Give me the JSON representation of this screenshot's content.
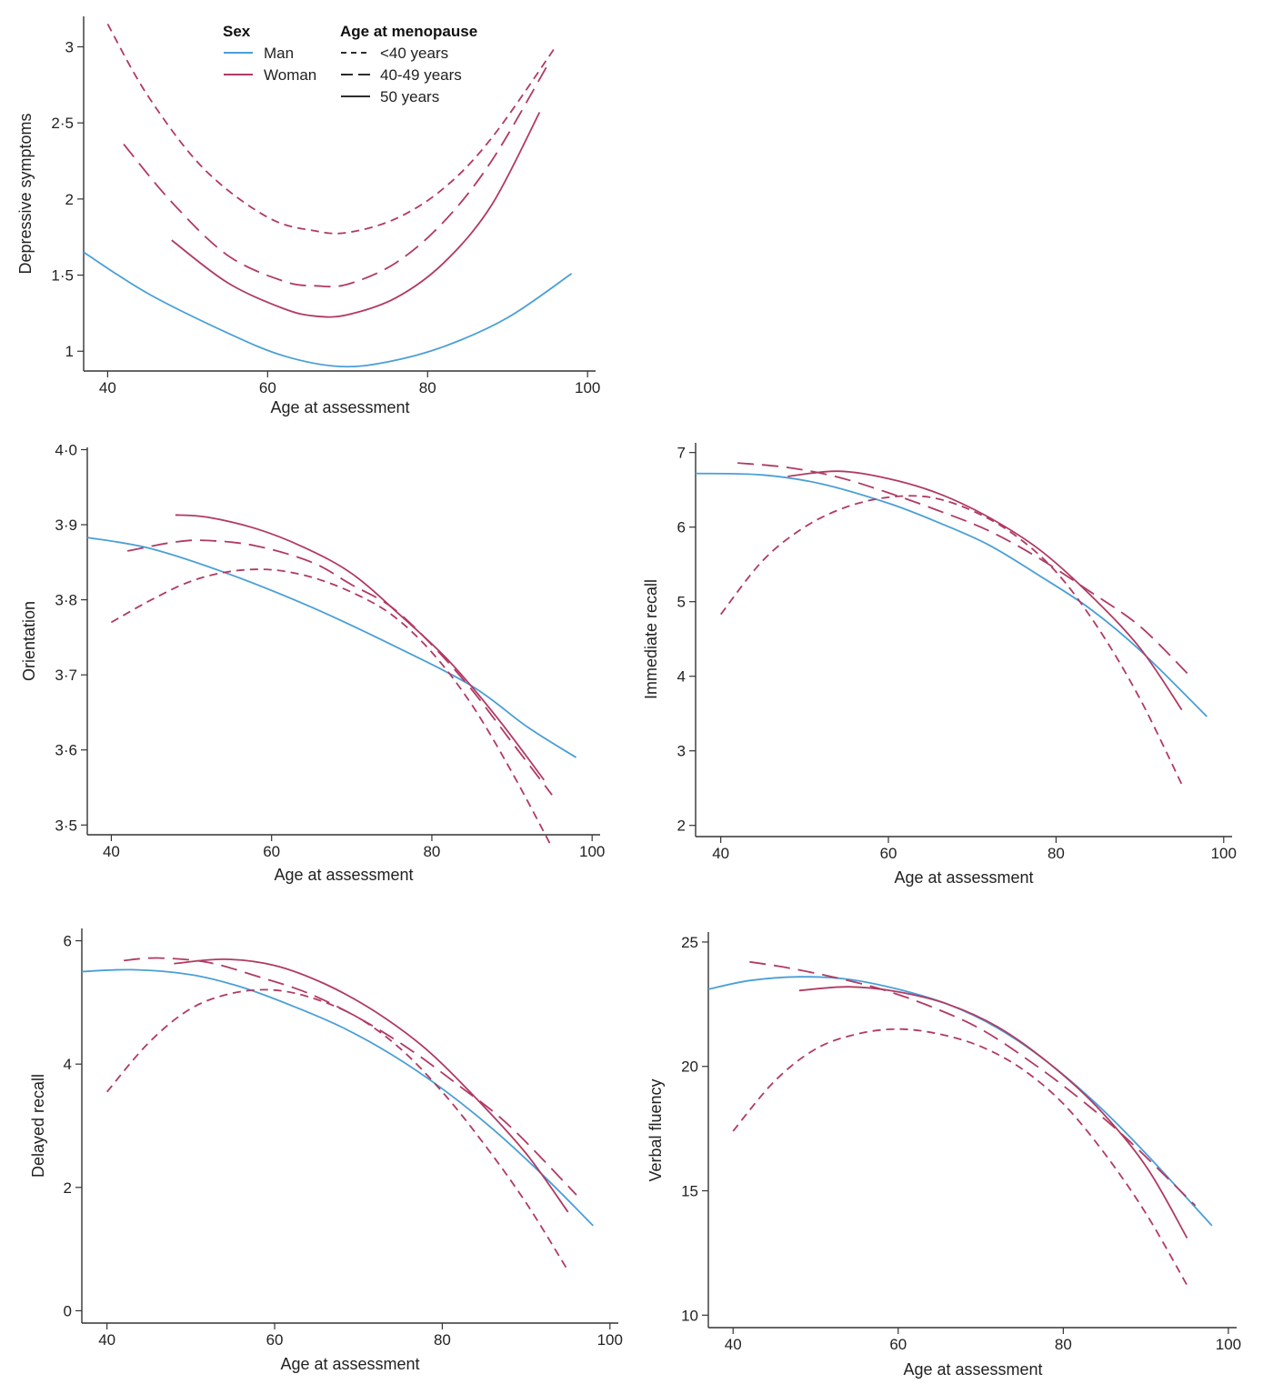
{
  "colors": {
    "man": "#4a9fd8",
    "woman": "#b03a63",
    "axis": "#333333"
  },
  "legend": {
    "sex_title": "Sex",
    "sex_items": [
      {
        "label": "Man",
        "color": "#4a9fd8"
      },
      {
        "label": "Woman",
        "color": "#b03a63"
      }
    ],
    "meno_title": "Age at menopause",
    "meno_items": [
      {
        "label": "<40 years",
        "dash": "short"
      },
      {
        "label": "40-49 years",
        "dash": "long"
      },
      {
        "label": "50 years",
        "dash": "solid"
      }
    ]
  },
  "chart_data": [
    {
      "id": "depressive",
      "type": "line",
      "ylabel": "Depressive symptoms",
      "xlabel": "Age at assessment",
      "xlim": [
        37,
        101
      ],
      "ylim": [
        0.87,
        3.2
      ],
      "xticks": [
        40,
        60,
        80,
        100
      ],
      "yticks": [
        1,
        1.5,
        2,
        2.5,
        3
      ],
      "ytick_labels": [
        "1",
        "1·5",
        "2",
        "2·5",
        "3"
      ],
      "series": [
        {
          "sex": "man",
          "meno": "solid",
          "x": [
            37,
            45,
            55,
            62,
            69,
            75,
            82,
            90,
            98
          ],
          "y": [
            1.65,
            1.38,
            1.12,
            0.97,
            0.9,
            0.93,
            1.03,
            1.22,
            1.51
          ]
        },
        {
          "sex": "woman",
          "meno": "short",
          "x": [
            40,
            45,
            52,
            60,
            66,
            70,
            76,
            82,
            88,
            96
          ],
          "y": [
            3.15,
            2.68,
            2.2,
            1.88,
            1.79,
            1.78,
            1.87,
            2.07,
            2.4,
            3.0
          ]
        },
        {
          "sex": "woman",
          "meno": "long",
          "x": [
            42,
            48,
            55,
            62,
            66,
            70,
            76,
            82,
            88,
            95
          ],
          "y": [
            2.36,
            1.98,
            1.63,
            1.46,
            1.43,
            1.44,
            1.58,
            1.85,
            2.25,
            2.88
          ]
        },
        {
          "sex": "woman",
          "meno": "solid",
          "x": [
            48,
            55,
            62,
            66,
            70,
            76,
            82,
            88,
            94
          ],
          "y": [
            1.73,
            1.45,
            1.28,
            1.23,
            1.24,
            1.35,
            1.58,
            1.96,
            2.57
          ]
        }
      ]
    },
    {
      "id": "orientation",
      "type": "line",
      "ylabel": "Orientation",
      "xlabel": "Age at assessment",
      "xlim": [
        37,
        101
      ],
      "ylim": [
        3.487,
        4.003
      ],
      "xticks": [
        40,
        60,
        80,
        100
      ],
      "yticks": [
        3.5,
        3.6,
        3.7,
        3.8,
        3.9,
        4.0
      ],
      "ytick_labels": [
        "3·5",
        "3·6",
        "3·7",
        "3·8",
        "3·9",
        "4·0"
      ],
      "series": [
        {
          "sex": "man",
          "meno": "solid",
          "x": [
            37,
            45,
            55,
            65,
            75,
            85,
            92,
            98
          ],
          "y": [
            3.883,
            3.868,
            3.833,
            3.79,
            3.74,
            3.685,
            3.63,
            3.59
          ]
        },
        {
          "sex": "woman",
          "meno": "short",
          "x": [
            40,
            45,
            50,
            55,
            60,
            65,
            70,
            75,
            80,
            85,
            90,
            95
          ],
          "y": [
            3.77,
            3.8,
            3.825,
            3.838,
            3.84,
            3.83,
            3.81,
            3.78,
            3.73,
            3.66,
            3.57,
            3.47
          ]
        },
        {
          "sex": "woman",
          "meno": "long",
          "x": [
            42,
            48,
            52,
            58,
            65,
            70,
            75,
            80,
            85,
            90,
            95
          ],
          "y": [
            3.865,
            3.877,
            3.879,
            3.872,
            3.85,
            3.82,
            3.79,
            3.74,
            3.68,
            3.61,
            3.54
          ]
        },
        {
          "sex": "woman",
          "meno": "solid",
          "x": [
            48,
            52,
            58,
            64,
            70,
            76,
            82,
            88,
            94
          ],
          "y": [
            3.913,
            3.91,
            3.895,
            3.87,
            3.835,
            3.78,
            3.72,
            3.645,
            3.56
          ]
        }
      ]
    },
    {
      "id": "immediate",
      "type": "line",
      "ylabel": "Immediate recall",
      "xlabel": "Age at assessment",
      "xlim": [
        37,
        101
      ],
      "ylim": [
        1.85,
        7.13
      ],
      "xticks": [
        40,
        60,
        80,
        100
      ],
      "yticks": [
        2,
        3,
        4,
        5,
        6,
        7
      ],
      "ytick_labels": [
        "2",
        "3",
        "4",
        "5",
        "6",
        "7"
      ],
      "series": [
        {
          "sex": "man",
          "meno": "solid",
          "x": [
            37,
            45,
            52,
            60,
            66,
            72,
            78,
            84,
            90,
            98
          ],
          "y": [
            6.72,
            6.7,
            6.58,
            6.32,
            6.06,
            5.76,
            5.35,
            4.91,
            4.35,
            3.46
          ]
        },
        {
          "sex": "woman",
          "meno": "short",
          "x": [
            40,
            45,
            50,
            55,
            60,
            65,
            70,
            75,
            80,
            85,
            90,
            95
          ],
          "y": [
            4.83,
            5.55,
            6.0,
            6.27,
            6.4,
            6.4,
            6.22,
            5.9,
            5.4,
            4.65,
            3.7,
            2.55
          ]
        },
        {
          "sex": "woman",
          "meno": "long",
          "x": [
            42,
            48,
            54,
            60,
            66,
            72,
            78,
            84,
            90,
            96
          ],
          "y": [
            6.86,
            6.8,
            6.67,
            6.46,
            6.22,
            5.95,
            5.58,
            5.14,
            4.67,
            4.0
          ]
        },
        {
          "sex": "woman",
          "meno": "solid",
          "x": [
            48,
            54,
            60,
            66,
            72,
            78,
            84,
            90,
            95
          ],
          "y": [
            6.68,
            6.75,
            6.65,
            6.45,
            6.13,
            5.7,
            5.1,
            4.38,
            3.55
          ]
        }
      ]
    },
    {
      "id": "delayed",
      "type": "line",
      "ylabel": "Delayed recall",
      "xlabel": "Age at assessment",
      "xlim": [
        37,
        101
      ],
      "ylim": [
        -0.2,
        6.2
      ],
      "xticks": [
        40,
        60,
        80,
        100
      ],
      "yticks": [
        0,
        2,
        4,
        6
      ],
      "ytick_labels": [
        "0",
        "2",
        "4",
        "6"
      ],
      "series": [
        {
          "sex": "man",
          "meno": "solid",
          "x": [
            37,
            43,
            50,
            56,
            62,
            68,
            74,
            80,
            86,
            92,
            98
          ],
          "y": [
            5.5,
            5.53,
            5.45,
            5.25,
            4.95,
            4.6,
            4.15,
            3.6,
            2.95,
            2.2,
            1.38
          ]
        },
        {
          "sex": "woman",
          "meno": "short",
          "x": [
            40,
            45,
            50,
            55,
            60,
            65,
            70,
            75,
            80,
            85,
            90,
            95
          ],
          "y": [
            3.55,
            4.35,
            4.9,
            5.15,
            5.2,
            5.05,
            4.75,
            4.25,
            3.55,
            2.7,
            1.75,
            0.65
          ]
        },
        {
          "sex": "woman",
          "meno": "long",
          "x": [
            42,
            46,
            52,
            58,
            64,
            70,
            76,
            82,
            88,
            96
          ],
          "y": [
            5.68,
            5.72,
            5.65,
            5.42,
            5.15,
            4.75,
            4.25,
            3.65,
            3.0,
            1.88
          ]
        },
        {
          "sex": "woman",
          "meno": "solid",
          "x": [
            48,
            54,
            60,
            66,
            72,
            78,
            84,
            90,
            95
          ],
          "y": [
            5.63,
            5.7,
            5.6,
            5.3,
            4.85,
            4.25,
            3.45,
            2.55,
            1.6
          ]
        }
      ]
    },
    {
      "id": "verbal",
      "type": "line",
      "ylabel": "Verbal fluency",
      "xlabel": "Age at assessment",
      "xlim": [
        37,
        101
      ],
      "ylim": [
        9.5,
        25.4
      ],
      "xticks": [
        40,
        60,
        80,
        100
      ],
      "yticks": [
        10,
        15,
        20,
        25
      ],
      "ytick_labels": [
        "10",
        "15",
        "20",
        "25"
      ],
      "series": [
        {
          "sex": "man",
          "meno": "solid",
          "x": [
            37,
            42,
            48,
            54,
            60,
            66,
            72,
            78,
            84,
            90,
            98
          ],
          "y": [
            23.1,
            23.45,
            23.6,
            23.5,
            23.1,
            22.5,
            21.55,
            20.2,
            18.5,
            16.5,
            13.6
          ]
        },
        {
          "sex": "woman",
          "meno": "short",
          "x": [
            40,
            45,
            50,
            55,
            60,
            65,
            70,
            75,
            80,
            85,
            90,
            95
          ],
          "y": [
            17.4,
            19.4,
            20.7,
            21.3,
            21.5,
            21.3,
            20.8,
            19.9,
            18.5,
            16.5,
            14.1,
            11.2
          ]
        },
        {
          "sex": "woman",
          "meno": "long",
          "x": [
            42,
            46,
            52,
            58,
            64,
            70,
            76,
            82,
            88,
            96
          ],
          "y": [
            24.2,
            24.0,
            23.6,
            23.1,
            22.4,
            21.5,
            20.2,
            18.7,
            17.0,
            14.4
          ]
        },
        {
          "sex": "woman",
          "meno": "solid",
          "x": [
            48,
            54,
            60,
            66,
            72,
            78,
            84,
            90,
            95
          ],
          "y": [
            23.05,
            23.2,
            23.0,
            22.5,
            21.6,
            20.2,
            18.4,
            16.0,
            13.1
          ]
        }
      ]
    }
  ]
}
